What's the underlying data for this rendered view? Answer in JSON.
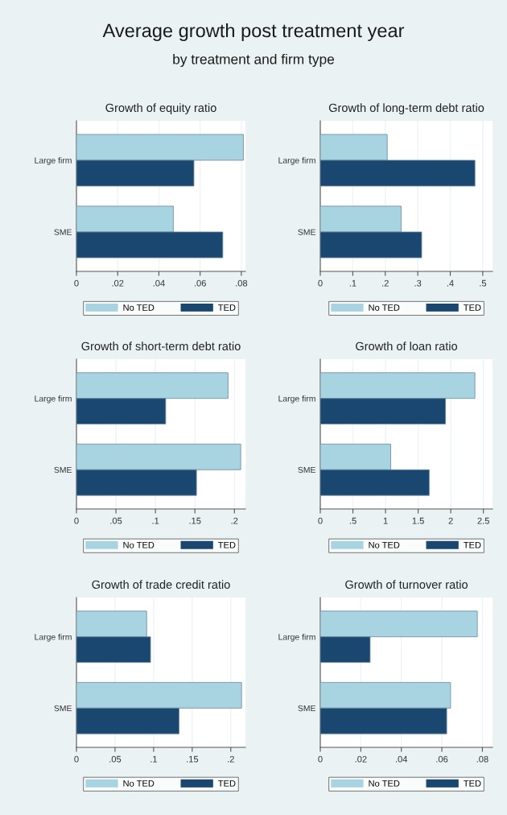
{
  "chart_data": [
    {
      "type": "bar",
      "orientation": "horizontal",
      "title": "Growth of equity ratio",
      "annotations": [
        "Average growth post treatment year",
        "by treatment and firm type"
      ],
      "categories": [
        "Large firm",
        "SME"
      ],
      "series": [
        {
          "name": "No TED",
          "color": "#a8d3e0",
          "values": [
            0.081,
            0.047
          ]
        },
        {
          "name": "TED",
          "color": "#1a476f",
          "values": [
            0.057,
            0.071
          ]
        }
      ],
      "xlim": [
        0,
        0.082
      ],
      "xticks": [
        0,
        {
          "value": 0.02,
          "label": ".02"
        },
        {
          "value": 0.04,
          "label": ".04"
        },
        {
          "value": 0.06,
          "label": ".06"
        },
        {
          "value": 0.08,
          "label": ".08"
        }
      ],
      "grid": "x",
      "legend": "bottom"
    },
    {
      "type": "bar",
      "orientation": "horizontal",
      "title": "Growth of long-term debt ratio",
      "categories": [
        "Large firm",
        "SME"
      ],
      "series": [
        {
          "name": "No TED",
          "color": "#a8d3e0",
          "values": [
            0.206,
            0.249
          ]
        },
        {
          "name": "TED",
          "color": "#1a476f",
          "values": [
            0.476,
            0.312
          ]
        }
      ],
      "xlim": [
        0,
        0.53
      ],
      "xticks": [
        0,
        {
          "value": 0.1,
          "label": ".1"
        },
        {
          "value": 0.2,
          "label": ".2"
        },
        {
          "value": 0.3,
          "label": ".3"
        },
        {
          "value": 0.4,
          "label": ".4"
        },
        {
          "value": 0.5,
          "label": ".5"
        }
      ],
      "grid": "x",
      "legend": "bottom"
    },
    {
      "type": "bar",
      "orientation": "horizontal",
      "title": "Growth of short-term debt ratio",
      "categories": [
        "Large firm",
        "SME"
      ],
      "series": [
        {
          "name": "No TED",
          "color": "#a8d3e0",
          "values": [
            0.192,
            0.208
          ]
        },
        {
          "name": "TED",
          "color": "#1a476f",
          "values": [
            0.113,
            0.152
          ]
        }
      ],
      "xlim": [
        0,
        0.214
      ],
      "xticks": [
        0,
        {
          "value": 0.05,
          "label": ".05"
        },
        {
          "value": 0.1,
          "label": ".1"
        },
        {
          "value": 0.15,
          "label": ".15"
        },
        {
          "value": 0.2,
          "label": ".2"
        }
      ],
      "grid": "x",
      "legend": "bottom"
    },
    {
      "type": "bar",
      "orientation": "horizontal",
      "title": "Growth of loan ratio",
      "categories": [
        "Large firm",
        "SME"
      ],
      "series": [
        {
          "name": "No TED",
          "color": "#a8d3e0",
          "values": [
            2.37,
            1.08
          ]
        },
        {
          "name": "TED",
          "color": "#1a476f",
          "values": [
            1.92,
            1.67
          ]
        }
      ],
      "xlim": [
        0,
        2.64
      ],
      "xticks": [
        0,
        {
          "value": 0.5,
          "label": ".5"
        },
        1,
        1.5,
        2,
        2.5
      ],
      "grid": "x",
      "legend": "bottom"
    },
    {
      "type": "bar",
      "orientation": "horizontal",
      "title": "Growth of trade credit ratio",
      "categories": [
        "Large firm",
        "SME"
      ],
      "series": [
        {
          "name": "No TED",
          "color": "#a8d3e0",
          "values": [
            0.091,
            0.214
          ]
        },
        {
          "name": "TED",
          "color": "#1a476f",
          "values": [
            0.096,
            0.133
          ]
        }
      ],
      "xlim": [
        0,
        0.219
      ],
      "xticks": [
        0,
        {
          "value": 0.05,
          "label": ".05"
        },
        {
          "value": 0.1,
          "label": ".1"
        },
        {
          "value": 0.15,
          "label": ".15"
        },
        {
          "value": 0.2,
          "label": ".2"
        }
      ],
      "grid": "x",
      "legend": "bottom"
    },
    {
      "type": "bar",
      "orientation": "horizontal",
      "title": "Growth of turnover ratio",
      "categories": [
        "Large firm",
        "SME"
      ],
      "series": [
        {
          "name": "No TED",
          "color": "#a8d3e0",
          "values": [
            0.0775,
            0.0643
          ]
        },
        {
          "name": "TED",
          "color": "#1a476f",
          "values": [
            0.0246,
            0.0624
          ]
        }
      ],
      "xlim": [
        0,
        0.085
      ],
      "xticks": [
        0,
        {
          "value": 0.02,
          "label": ".02"
        },
        {
          "value": 0.04,
          "label": ".04"
        },
        {
          "value": 0.06,
          "label": ".06"
        },
        {
          "value": 0.08,
          "label": ".08"
        }
      ],
      "grid": "x",
      "legend": "bottom"
    }
  ]
}
